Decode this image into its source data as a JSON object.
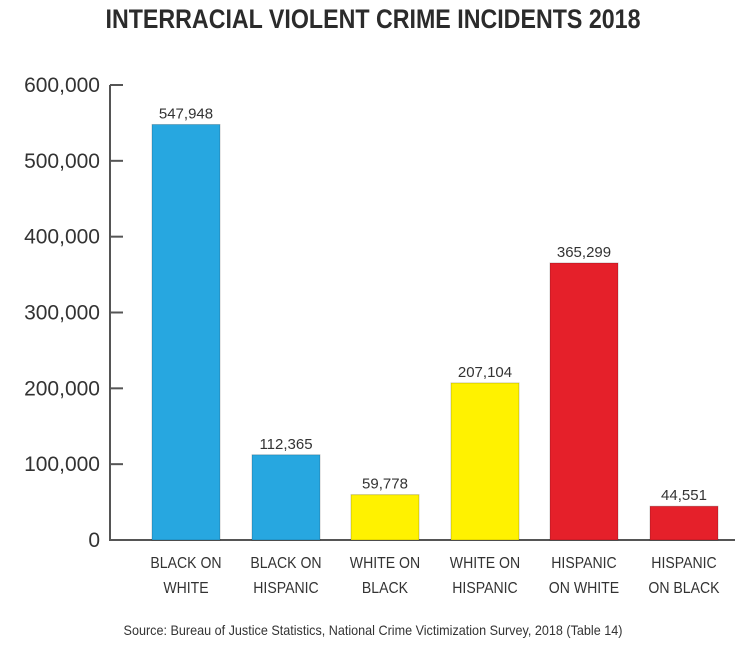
{
  "chart_data": {
    "type": "bar",
    "title": "INTERRACIAL VIOLENT CRIME INCIDENTS 2018",
    "categories": [
      [
        "BLACK ON",
        "WHITE"
      ],
      [
        "BLACK ON",
        "HISPANIC"
      ],
      [
        "WHITE ON",
        "BLACK"
      ],
      [
        "WHITE ON",
        "HISPANIC"
      ],
      [
        "HISPANIC",
        "ON WHITE"
      ],
      [
        "HISPANIC",
        "ON BLACK"
      ]
    ],
    "values": [
      547948,
      112365,
      59778,
      207104,
      365299,
      44551
    ],
    "data_labels": [
      "547,948",
      "112,365",
      "59,778",
      "207,104",
      "365,299",
      "44,551"
    ],
    "colors": [
      "#27a7e0",
      "#27a7e0",
      "#fff200",
      "#fff200",
      "#e5202a",
      "#e5202a"
    ],
    "ylim": [
      0,
      600000
    ],
    "yticks": [
      0,
      100000,
      200000,
      300000,
      400000,
      500000,
      600000
    ],
    "ytick_labels": [
      "0",
      "100,000",
      "200,000",
      "300,000",
      "400,000",
      "500,000",
      "600,000"
    ],
    "xlabel": "",
    "ylabel": "",
    "grid": false,
    "legend": "none"
  },
  "source": "Source: Bureau of Justice Statistics, National Crime Victimization Survey, 2018 (Table 14)"
}
